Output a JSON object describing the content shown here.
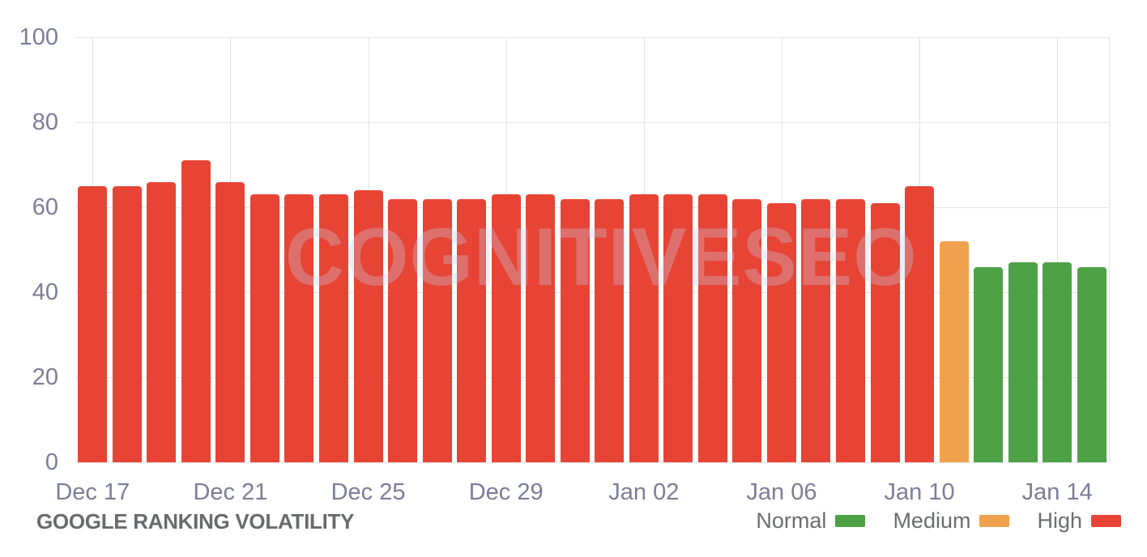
{
  "title": "GOOGLE RANKING VOLATILITY",
  "watermark": "COGNITIVESEO",
  "colors": {
    "normal": "#4ea145",
    "medium": "#f0a14d",
    "high": "#e74435",
    "grid": "#e4e5eb",
    "axis_label": "#7c7d99",
    "title_text": "#696a6d",
    "legend_text": "#6c6d70"
  },
  "legend": {
    "position": "bottom-right",
    "items": [
      {
        "label": "Normal",
        "level": "normal"
      },
      {
        "label": "Medium",
        "level": "medium"
      },
      {
        "label": "High",
        "level": "high"
      }
    ]
  },
  "chart_data": {
    "type": "bar",
    "title": "GOOGLE RANKING VOLATILITY",
    "xlabel": "",
    "ylabel": "",
    "ylim": [
      0,
      100
    ],
    "yticks": [
      0,
      20,
      40,
      60,
      80,
      100
    ],
    "grid": true,
    "xtick_label_every": 4,
    "categories": [
      "Dec 17",
      "Dec 18",
      "Dec 19",
      "Dec 20",
      "Dec 21",
      "Dec 22",
      "Dec 23",
      "Dec 24",
      "Dec 25",
      "Dec 26",
      "Dec 27",
      "Dec 28",
      "Dec 29",
      "Dec 30",
      "Dec 31",
      "Jan 01",
      "Jan 02",
      "Jan 03",
      "Jan 04",
      "Jan 05",
      "Jan 06",
      "Jan 07",
      "Jan 08",
      "Jan 09",
      "Jan 10",
      "Jan 11",
      "Jan 12",
      "Jan 13",
      "Jan 14",
      "Jan 15"
    ],
    "values": [
      65,
      65,
      66,
      71,
      66,
      63,
      63,
      63,
      64,
      62,
      62,
      62,
      63,
      63,
      62,
      62,
      63,
      63,
      63,
      62,
      61,
      62,
      62,
      61,
      65,
      52,
      46,
      47,
      47,
      46
    ],
    "levels": [
      "high",
      "high",
      "high",
      "high",
      "high",
      "high",
      "high",
      "high",
      "high",
      "high",
      "high",
      "high",
      "high",
      "high",
      "high",
      "high",
      "high",
      "high",
      "high",
      "high",
      "high",
      "high",
      "high",
      "high",
      "high",
      "medium",
      "normal",
      "normal",
      "normal",
      "normal"
    ],
    "visible_xtick_labels": [
      "Dec 17",
      "Dec 21",
      "Dec 25",
      "Dec 29",
      "Jan 02",
      "Jan 06",
      "Jan 10",
      "Jan 14"
    ]
  }
}
